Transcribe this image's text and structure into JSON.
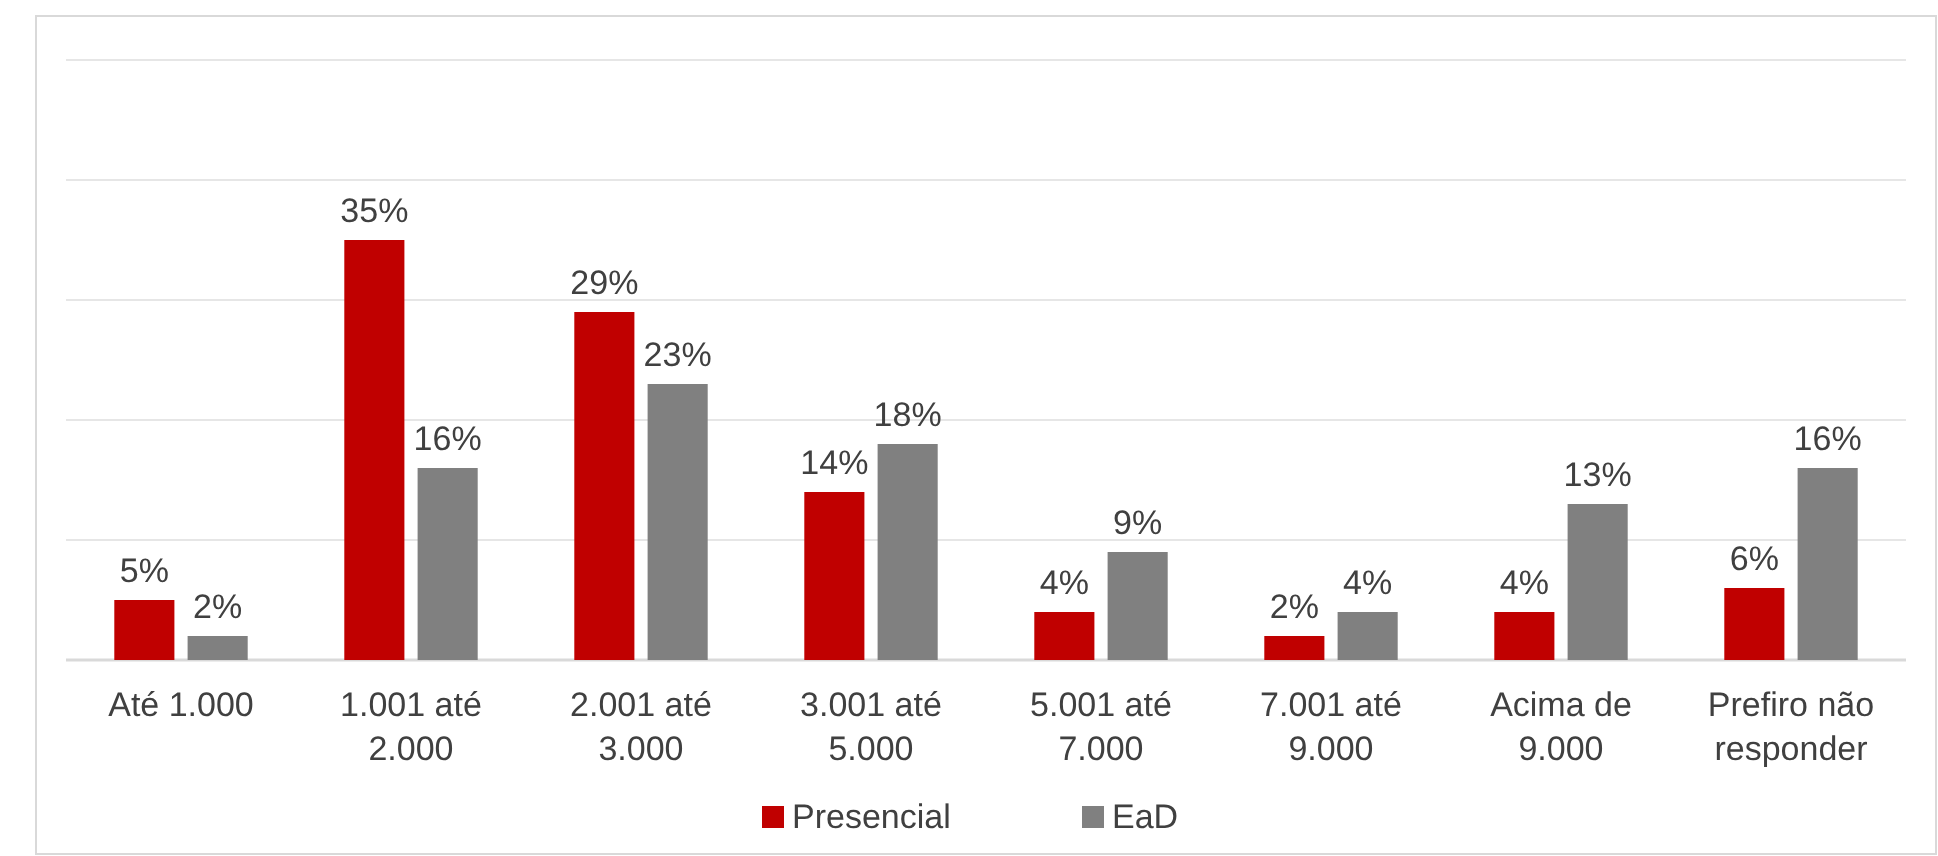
{
  "chart_data": {
    "type": "bar",
    "categories": [
      "Até 1.000",
      "1.001 até 2.000",
      "2.001 até 3.000",
      "3.001 até 5.000",
      "5.001 até 7.000",
      "7.001 até 9.000",
      "Acima de 9.000",
      "Prefiro não responder"
    ],
    "series": [
      {
        "name": "Presencial",
        "color": "#c00000",
        "values": [
          5,
          35,
          29,
          14,
          4,
          2,
          4,
          6
        ],
        "value_labels": [
          "5%",
          "35%",
          "29%",
          "14%",
          "4%",
          "2%",
          "4%",
          "6%"
        ]
      },
      {
        "name": "EaD",
        "color": "#808080",
        "values": [
          2,
          16,
          23,
          18,
          9,
          4,
          13,
          16
        ],
        "value_labels": [
          "2%",
          "16%",
          "23%",
          "18%",
          "9%",
          "4%",
          "13%",
          "16%"
        ]
      }
    ],
    "ylim": [
      0,
      50
    ],
    "yticks": [
      {
        "value": 0,
        "label": null
      },
      {
        "value": 10,
        "label": null
      },
      {
        "value": 20,
        "label": null
      },
      {
        "value": 30,
        "label": null
      },
      {
        "value": 40,
        "label": null
      },
      {
        "value": 50,
        "label": null
      }
    ],
    "tick_labels": "x",
    "grid": "y",
    "legend": "bottom"
  }
}
